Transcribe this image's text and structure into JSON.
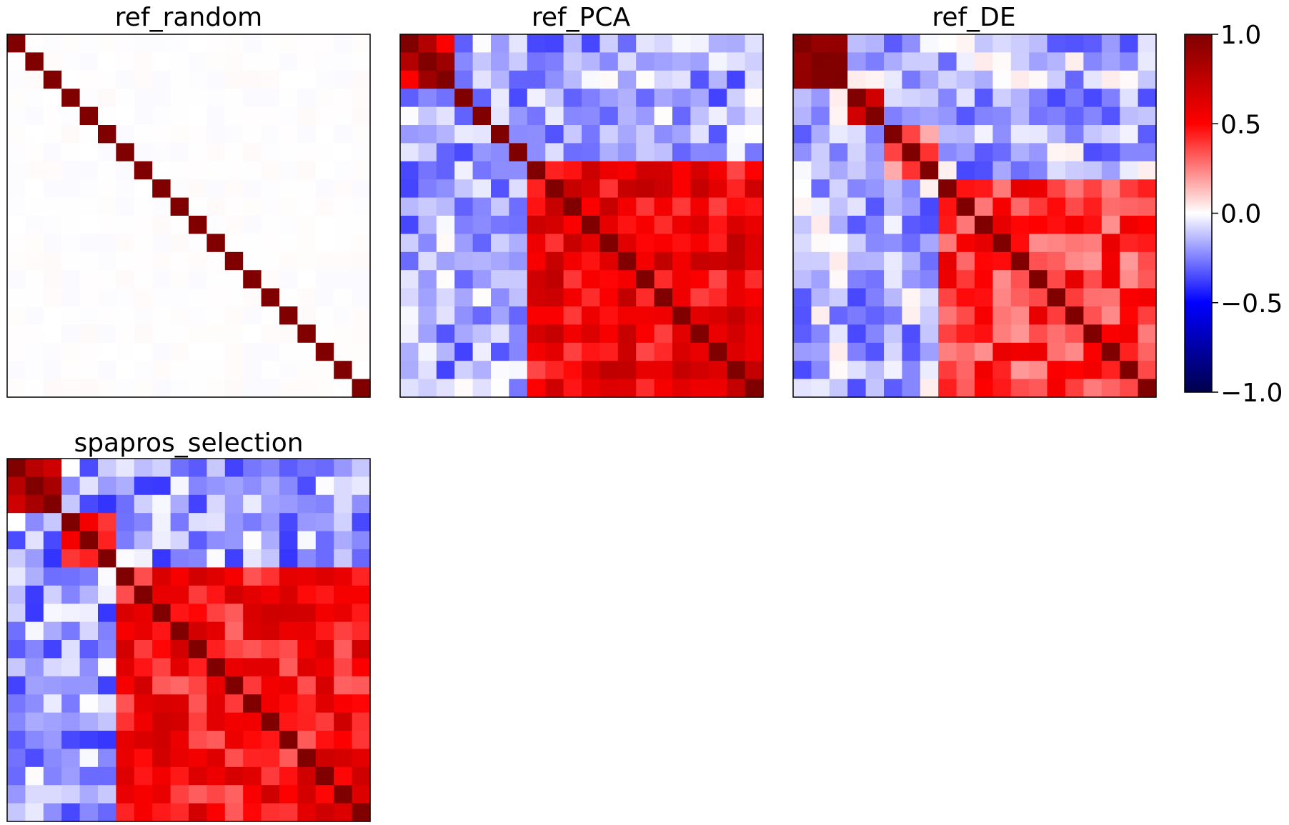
{
  "chart_data": [
    {
      "type": "heatmap",
      "title": "ref_random",
      "n": 20,
      "blocks": [],
      "noise": 0.01,
      "diagonal": 1.0,
      "vmin": -1.0,
      "vmax": 1.0,
      "cmap": "seismic"
    },
    {
      "type": "heatmap",
      "title": "ref_PCA",
      "n": 20,
      "blocks": [
        {
          "start": 0,
          "end": 3,
          "within": 0.7
        },
        {
          "start": 7,
          "end": 20,
          "within": 0.55
        }
      ],
      "cross": -0.18,
      "noise": 0.08,
      "diagonal": 1.0,
      "vmin": -1.0,
      "vmax": 1.0,
      "cmap": "seismic"
    },
    {
      "type": "heatmap",
      "title": "ref_DE",
      "n": 20,
      "blocks": [
        {
          "start": 0,
          "end": 3,
          "within": 0.8
        },
        {
          "start": 3,
          "end": 5,
          "within": 0.85
        },
        {
          "start": 5,
          "end": 8,
          "within": 0.3
        },
        {
          "start": 8,
          "end": 20,
          "within": 0.4
        }
      ],
      "cross": -0.16,
      "noise": 0.08,
      "diagonal": 1.0,
      "vmin": -1.0,
      "vmax": 1.0,
      "cmap": "seismic"
    },
    {
      "type": "heatmap",
      "title": "spapros_selection",
      "n": 20,
      "blocks": [
        {
          "start": 0,
          "end": 3,
          "within": 0.65
        },
        {
          "start": 3,
          "end": 6,
          "within": 0.35
        },
        {
          "start": 6,
          "end": 20,
          "within": 0.5
        }
      ],
      "cross": -0.2,
      "noise": 0.08,
      "diagonal": 1.0,
      "vmin": -1.0,
      "vmax": 1.0,
      "cmap": "seismic"
    }
  ],
  "colorbar": {
    "vmin": -1.0,
    "vmax": 1.0,
    "ticks": [
      1.0,
      0.5,
      0.0,
      -0.5,
      -1.0
    ],
    "tick_labels": [
      "1.0",
      "0.5",
      "0.0",
      "−0.5",
      "−1.0"
    ]
  }
}
